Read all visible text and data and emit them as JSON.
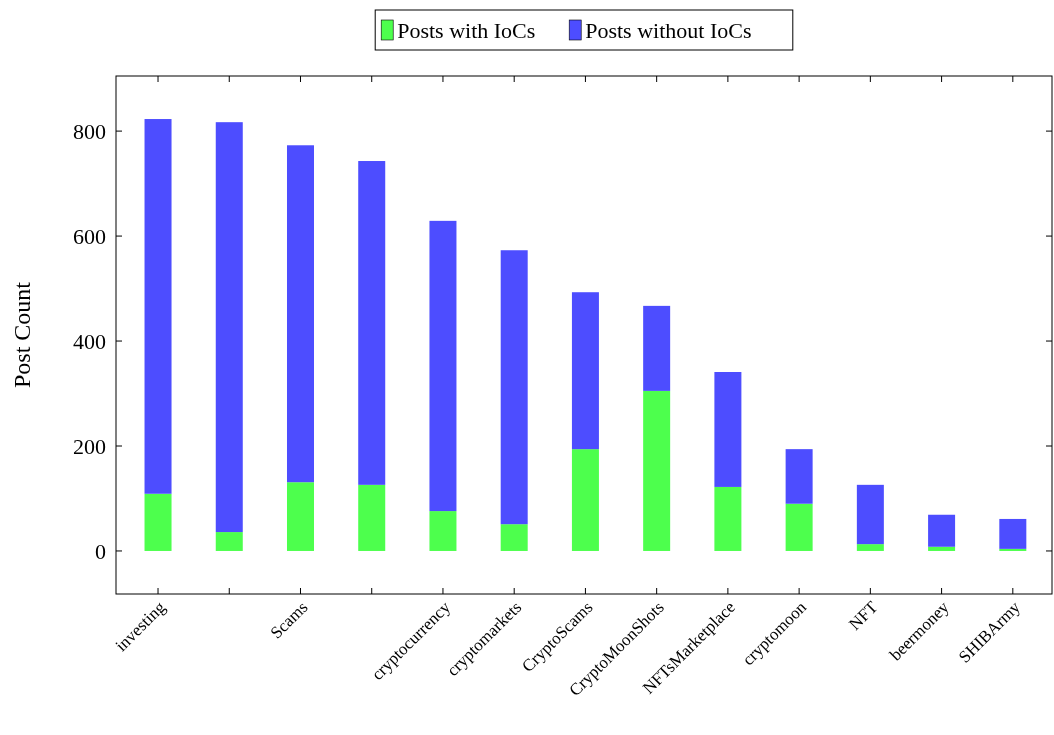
{
  "chart_data": {
    "type": "bar",
    "stacked": true,
    "ylabel": "Post Count",
    "categories": [
      "investing",
      null,
      "Scams",
      null,
      "cryptocurrency",
      "cryptomarkets",
      "CryptoScams",
      "CryptoMoonShots",
      "NFTsMarketplace",
      "cryptomoon",
      "NFT",
      "beermoney",
      "SHIBArmy"
    ],
    "series": [
      {
        "name": "Posts with IoCs",
        "color": "#4dff4d",
        "values": [
          109,
          36,
          131,
          126,
          76,
          51,
          194,
          305,
          122,
          90,
          13,
          8,
          4
        ]
      },
      {
        "name": "Posts without IoCs",
        "color": "#4d4dff",
        "values": [
          714,
          781,
          642,
          617,
          553,
          522,
          299,
          162,
          219,
          104,
          113,
          61,
          57
        ]
      }
    ],
    "ylim": [
      -82,
      905
    ],
    "yticks": [
      0,
      200,
      400,
      600,
      800
    ],
    "legend": "top",
    "grid": false
  }
}
